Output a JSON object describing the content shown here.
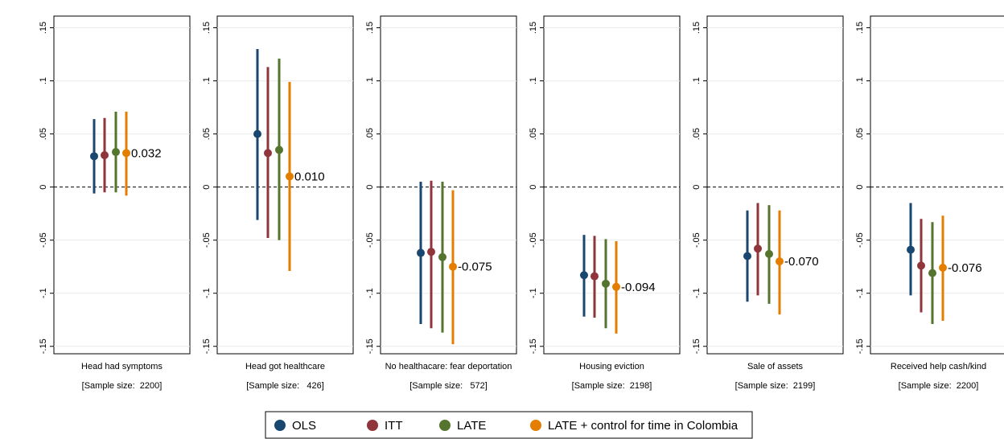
{
  "legend": [
    {
      "name": "OLS",
      "color": "#1a476f"
    },
    {
      "name": "ITT",
      "color": "#90353b"
    },
    {
      "name": "LATE",
      "color": "#55752f"
    },
    {
      "name": "LATE + control for time in Colombia",
      "color": "#e37e00"
    }
  ],
  "chart_data": [
    {
      "type": "errorbar",
      "xlabel": "Head had symptoms",
      "note": "[Sample size:  2200]",
      "ylim": [
        -0.157,
        0.161
      ],
      "yticks": [
        {
          "value": -0.15,
          "label": "-.15"
        },
        {
          "value": -0.1,
          "label": "-.1"
        },
        {
          "value": -0.05,
          "label": "-.05"
        },
        0,
        {
          "value": 0.05,
          "label": ".05"
        },
        {
          "value": 0.1,
          "label": ".1"
        },
        {
          "value": 0.15,
          "label": ".15"
        }
      ],
      "series": [
        {
          "values": [
            0.029
          ],
          "lower": [
            -0.006
          ],
          "upper": [
            0.064
          ]
        },
        {
          "values": [
            0.03
          ],
          "lower": [
            -0.005
          ],
          "upper": [
            0.065
          ]
        },
        {
          "values": [
            0.033
          ],
          "lower": [
            -0.005
          ],
          "upper": [
            0.071
          ]
        },
        {
          "values": [
            0.032
          ],
          "lower": [
            -0.008
          ],
          "upper": [
            0.071
          ],
          "value_labels": [
            "0.032"
          ]
        }
      ]
    },
    {
      "type": "errorbar",
      "xlabel": "Head got healthcare",
      "note": "[Sample size:   426]",
      "ylim": [
        -0.157,
        0.161
      ],
      "yticks": [
        {
          "value": -0.15,
          "label": "-.15"
        },
        {
          "value": -0.1,
          "label": "-.1"
        },
        {
          "value": -0.05,
          "label": "-.05"
        },
        0,
        {
          "value": 0.05,
          "label": ".05"
        },
        {
          "value": 0.1,
          "label": ".1"
        },
        {
          "value": 0.15,
          "label": ".15"
        }
      ],
      "series": [
        {
          "values": [
            0.05
          ],
          "lower": [
            -0.031
          ],
          "upper": [
            0.13
          ]
        },
        {
          "values": [
            0.032
          ],
          "lower": [
            -0.048
          ],
          "upper": [
            0.113
          ]
        },
        {
          "values": [
            0.035
          ],
          "lower": [
            -0.05
          ],
          "upper": [
            0.121
          ]
        },
        {
          "values": [
            0.01
          ],
          "lower": [
            -0.079
          ],
          "upper": [
            0.099
          ],
          "value_labels": [
            "0.010"
          ]
        }
      ]
    },
    {
      "type": "errorbar",
      "xlabel": "No healthacare: fear deportation",
      "note": "[Sample size:   572]",
      "ylim": [
        -0.157,
        0.161
      ],
      "yticks": [
        {
          "value": -0.15,
          "label": "-.15"
        },
        {
          "value": -0.1,
          "label": "-.1"
        },
        {
          "value": -0.05,
          "label": "-.05"
        },
        0,
        {
          "value": 0.05,
          "label": ".05"
        },
        {
          "value": 0.1,
          "label": ".1"
        },
        {
          "value": 0.15,
          "label": ".15"
        }
      ],
      "series": [
        {
          "values": [
            -0.062
          ],
          "lower": [
            -0.129
          ],
          "upper": [
            0.005
          ]
        },
        {
          "values": [
            -0.061
          ],
          "lower": [
            -0.133
          ],
          "upper": [
            0.006
          ]
        },
        {
          "values": [
            -0.066
          ],
          "lower": [
            -0.137
          ],
          "upper": [
            0.005
          ]
        },
        {
          "values": [
            -0.075
          ],
          "lower": [
            -0.148
          ],
          "upper": [
            -0.003
          ],
          "value_labels": [
            "-0.075"
          ]
        }
      ]
    },
    {
      "type": "errorbar",
      "xlabel": "Housing eviction",
      "note": "[Sample size:  2198]",
      "ylim": [
        -0.157,
        0.161
      ],
      "yticks": [
        {
          "value": -0.15,
          "label": "-.15"
        },
        {
          "value": -0.1,
          "label": "-.1"
        },
        {
          "value": -0.05,
          "label": "-.05"
        },
        0,
        {
          "value": 0.05,
          "label": ".05"
        },
        {
          "value": 0.1,
          "label": ".1"
        },
        {
          "value": 0.15,
          "label": ".15"
        }
      ],
      "series": [
        {
          "values": [
            -0.083
          ],
          "lower": [
            -0.122
          ],
          "upper": [
            -0.045
          ]
        },
        {
          "values": [
            -0.084
          ],
          "lower": [
            -0.123
          ],
          "upper": [
            -0.046
          ]
        },
        {
          "values": [
            -0.091
          ],
          "lower": [
            -0.133
          ],
          "upper": [
            -0.049
          ]
        },
        {
          "values": [
            -0.094
          ],
          "lower": [
            -0.138
          ],
          "upper": [
            -0.051
          ],
          "value_labels": [
            "-0.094"
          ]
        }
      ]
    },
    {
      "type": "errorbar",
      "xlabel": "Sale of assets",
      "note": "[Sample size:  2199]",
      "ylim": [
        -0.157,
        0.161
      ],
      "yticks": [
        {
          "value": -0.15,
          "label": "-.15"
        },
        {
          "value": -0.1,
          "label": "-.1"
        },
        {
          "value": -0.05,
          "label": "-.05"
        },
        0,
        {
          "value": 0.05,
          "label": ".05"
        },
        {
          "value": 0.1,
          "label": ".1"
        },
        {
          "value": 0.15,
          "label": ".15"
        }
      ],
      "series": [
        {
          "values": [
            -0.065
          ],
          "lower": [
            -0.108
          ],
          "upper": [
            -0.022
          ]
        },
        {
          "values": [
            -0.058
          ],
          "lower": [
            -0.102
          ],
          "upper": [
            -0.015
          ]
        },
        {
          "values": [
            -0.063
          ],
          "lower": [
            -0.11
          ],
          "upper": [
            -0.017
          ]
        },
        {
          "values": [
            -0.07
          ],
          "lower": [
            -0.12
          ],
          "upper": [
            -0.022
          ],
          "value_labels": [
            "-0.070"
          ]
        }
      ]
    },
    {
      "type": "errorbar",
      "xlabel": "Received help cash/kind",
      "note": "[Sample size:  2200]",
      "ylim": [
        -0.157,
        0.161
      ],
      "yticks": [
        {
          "value": -0.15,
          "label": "-.15"
        },
        {
          "value": -0.1,
          "label": "-.1"
        },
        {
          "value": -0.05,
          "label": "-.05"
        },
        0,
        {
          "value": 0.05,
          "label": ".05"
        },
        {
          "value": 0.1,
          "label": ".1"
        },
        {
          "value": 0.15,
          "label": ".15"
        }
      ],
      "series": [
        {
          "values": [
            -0.059
          ],
          "lower": [
            -0.102
          ],
          "upper": [
            -0.015
          ]
        },
        {
          "values": [
            -0.074
          ],
          "lower": [
            -0.118
          ],
          "upper": [
            -0.03
          ]
        },
        {
          "values": [
            -0.081
          ],
          "lower": [
            -0.129
          ],
          "upper": [
            -0.033
          ]
        },
        {
          "values": [
            -0.076
          ],
          "lower": [
            -0.126
          ],
          "upper": [
            -0.027
          ],
          "value_labels": [
            "-0.076"
          ]
        }
      ]
    }
  ]
}
